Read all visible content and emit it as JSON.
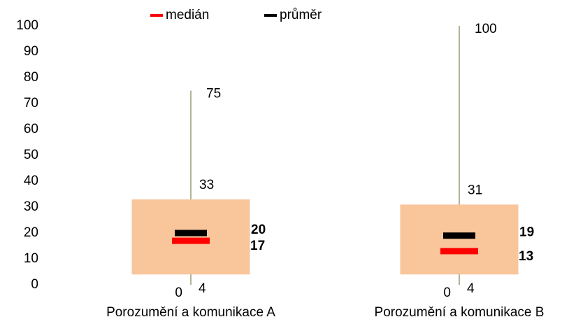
{
  "chart_data": {
    "type": "box",
    "categories": [
      "Porozumění a komunikace A",
      "Porozumění a komunikace B"
    ],
    "boxes": [
      {
        "min": 0,
        "q1": 4,
        "median": 17,
        "mean": 20,
        "q3": 33,
        "max": 75
      },
      {
        "min": 0,
        "q1": 4,
        "median": 13,
        "mean": 19,
        "q3": 31,
        "max": 100
      }
    ],
    "series": [
      {
        "name": "medián",
        "color": "#ff0000"
      },
      {
        "name": "průměr",
        "color": "#000000"
      }
    ],
    "box_color": "#f9c59b",
    "whisker_color": "#8c8a5f",
    "ylim": [
      0,
      100
    ],
    "yticks": [
      0,
      10,
      20,
      30,
      40,
      50,
      60,
      70,
      80,
      90,
      100
    ],
    "grid": false,
    "legend": "top"
  }
}
